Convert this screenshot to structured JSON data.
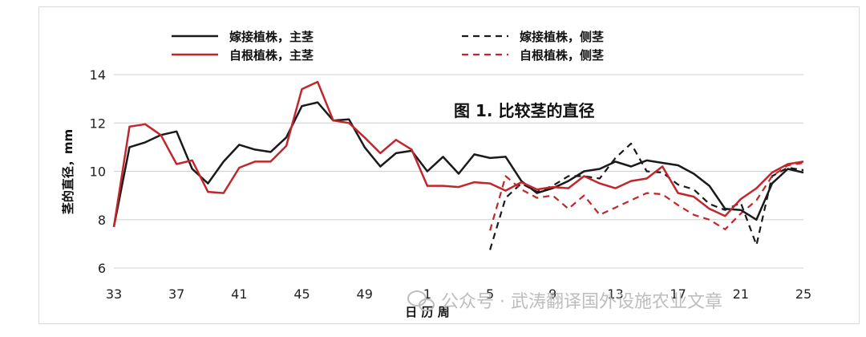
{
  "chart_data": {
    "type": "line",
    "title": "图 1. 比较茎的直径",
    "xlabel": "日 历 周",
    "ylabel": "茎的直径，mm",
    "ylim": [
      6,
      14
    ],
    "yticks": [
      6,
      8,
      10,
      12,
      14
    ],
    "grid": true,
    "legend_position": "top",
    "x": [
      33,
      34,
      35,
      36,
      37,
      38,
      39,
      40,
      41,
      42,
      43,
      44,
      45,
      46,
      47,
      48,
      49,
      50,
      51,
      52,
      1,
      2,
      3,
      4,
      5,
      6,
      7,
      8,
      9,
      10,
      11,
      12,
      13,
      14,
      15,
      16,
      17,
      18,
      19,
      20,
      21,
      22,
      23,
      24,
      25
    ],
    "xtick_labels": [
      "33",
      "37",
      "41",
      "45",
      "49",
      "1",
      "5",
      "9",
      "13",
      "17",
      "21",
      "25"
    ],
    "series": [
      {
        "name": "嫁接植株，主茎",
        "color": "#1a1a1a",
        "dash": "solid",
        "values": [
          7.7,
          11.0,
          11.2,
          11.5,
          11.65,
          10.1,
          9.5,
          10.4,
          11.1,
          10.9,
          10.8,
          11.4,
          12.7,
          12.85,
          12.1,
          12.15,
          11.0,
          10.2,
          10.75,
          10.85,
          10.0,
          10.6,
          9.9,
          10.7,
          10.55,
          10.6,
          9.6,
          9.1,
          9.3,
          9.6,
          10.0,
          10.1,
          10.4,
          10.2,
          10.45,
          10.35,
          10.25,
          9.9,
          9.4,
          8.45,
          8.4,
          8.0,
          9.5,
          10.1,
          9.95
        ]
      },
      {
        "name": "自根植株，主茎",
        "color": "#c0272d",
        "dash": "solid",
        "values": [
          7.7,
          11.85,
          11.95,
          11.5,
          10.3,
          10.45,
          9.15,
          9.1,
          10.15,
          10.4,
          10.4,
          11.05,
          13.4,
          13.7,
          12.1,
          12.0,
          11.4,
          10.75,
          11.3,
          10.9,
          9.4,
          9.4,
          9.35,
          9.55,
          9.5,
          9.2,
          9.55,
          9.25,
          9.35,
          9.3,
          9.8,
          9.5,
          9.3,
          9.6,
          9.7,
          10.2,
          9.1,
          8.95,
          8.45,
          8.15,
          8.85,
          9.3,
          9.95,
          10.3,
          10.4
        ]
      },
      {
        "name": "嫁接植株，侧茎",
        "color": "#1a1a1a",
        "dash": "dashed",
        "values": [
          null,
          null,
          null,
          null,
          null,
          null,
          null,
          null,
          null,
          null,
          null,
          null,
          null,
          null,
          null,
          null,
          null,
          null,
          null,
          null,
          null,
          null,
          null,
          null,
          6.75,
          8.9,
          9.5,
          9.15,
          9.4,
          9.8,
          9.8,
          9.7,
          10.55,
          11.15,
          10.0,
          9.95,
          9.45,
          9.25,
          8.65,
          8.4,
          8.7,
          6.95,
          9.8,
          10.15,
          10.05
        ]
      },
      {
        "name": "自根植株，侧茎",
        "color": "#c0272d",
        "dash": "dashed",
        "values": [
          null,
          null,
          null,
          null,
          null,
          null,
          null,
          null,
          null,
          null,
          null,
          null,
          null,
          null,
          null,
          null,
          null,
          null,
          null,
          null,
          null,
          null,
          null,
          null,
          7.55,
          9.8,
          9.25,
          8.9,
          9.0,
          8.45,
          9.0,
          8.2,
          8.5,
          8.8,
          9.1,
          9.05,
          8.6,
          8.2,
          8.0,
          7.6,
          8.25,
          8.8,
          9.8,
          10.25,
          10.35
        ]
      }
    ]
  },
  "watermark": {
    "icon": "wechat-icon",
    "text": "公众号 · 武涛翻译国外设施农业文章"
  }
}
